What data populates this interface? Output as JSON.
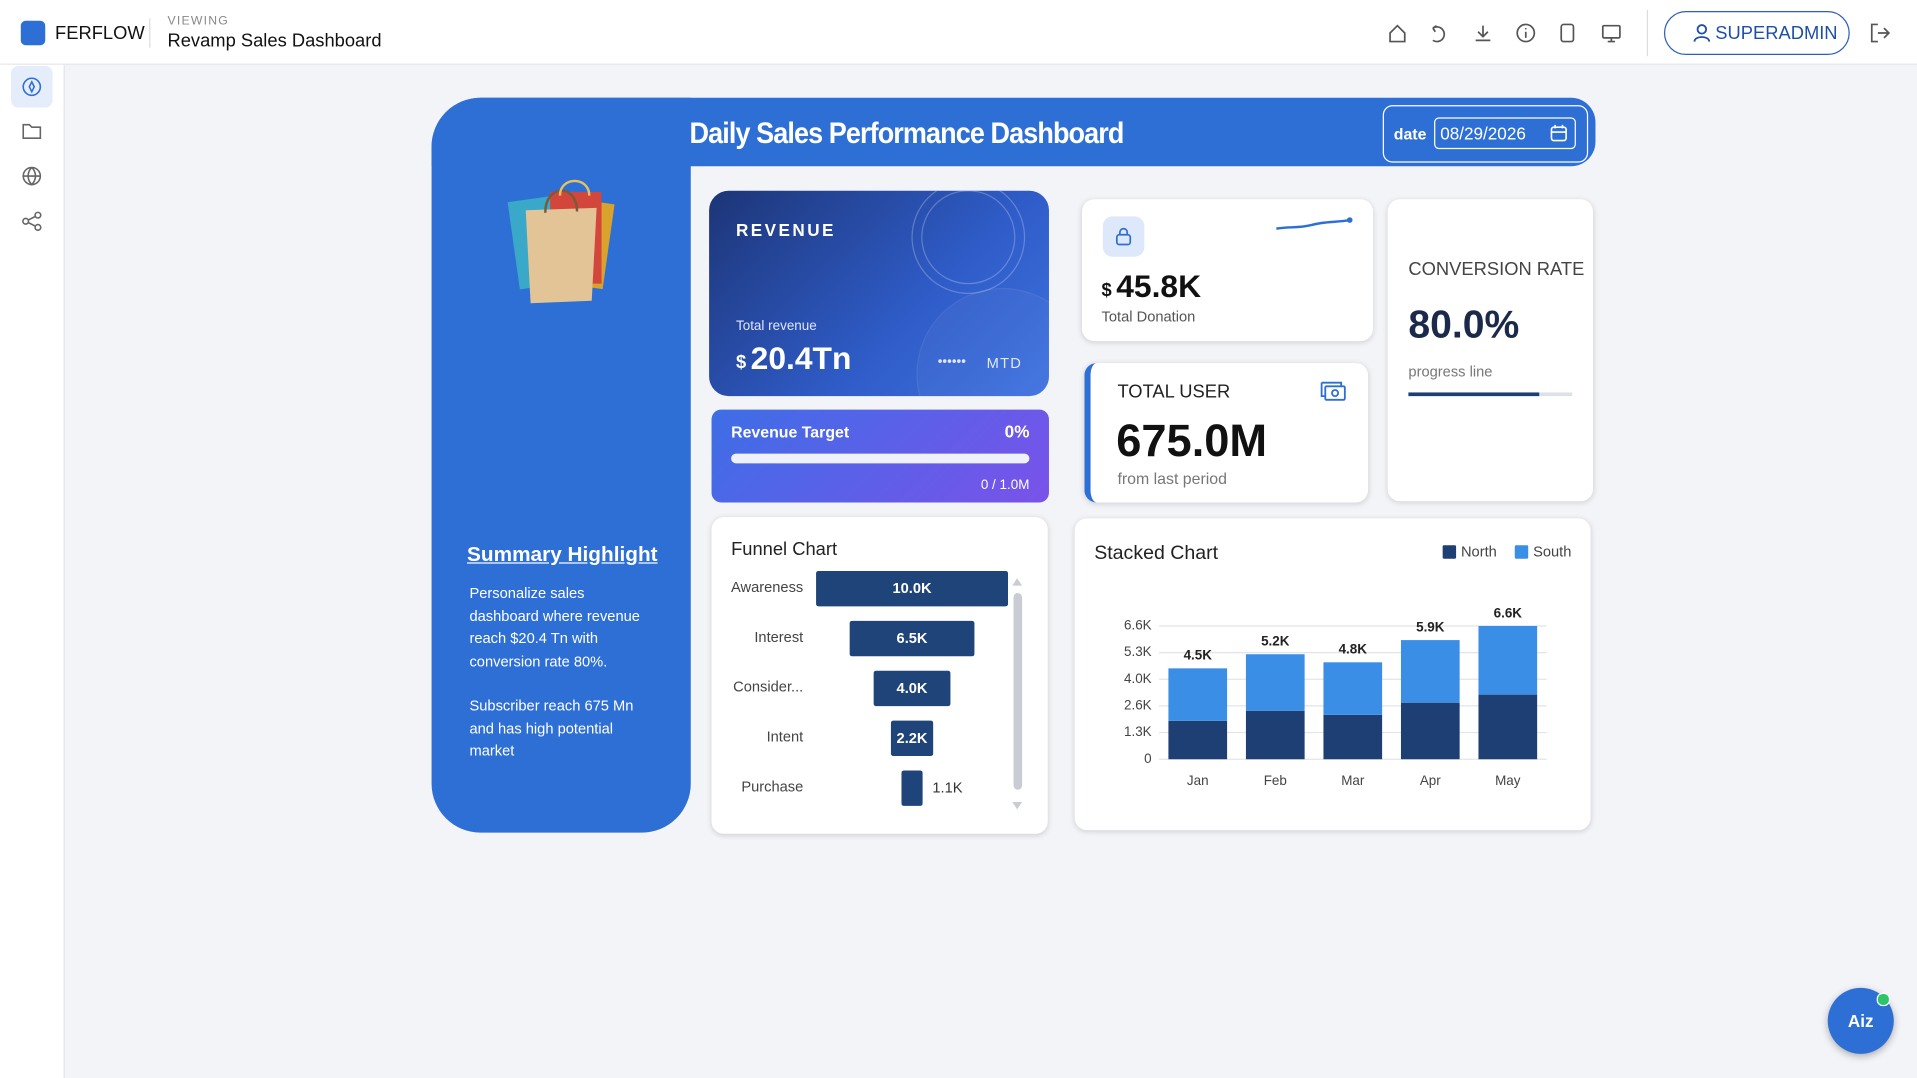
{
  "header": {
    "brand": "FERFLOW",
    "viewing_label": "VIEWING",
    "dashboard_name": "Revamp Sales Dashboard",
    "user": "SUPERADMIN"
  },
  "dashboard": {
    "title": "Daily Sales Performance Dashboard",
    "date_label": "date",
    "date_value": "08/29/2026",
    "summary": {
      "title": "Summary Highlight",
      "paragraphs": [
        "Personalize sales dashboard where revenue reach $20.4 Tn with conversion rate 80%.",
        "Subscriber reach 675 Mn and has high potential market"
      ]
    },
    "revenue": {
      "label": "REVENUE",
      "sub_label": "Total revenue",
      "currency": "$",
      "value": "20.4Tn",
      "masked": "••••••",
      "period": "MTD"
    },
    "revenue_target": {
      "label": "Revenue Target",
      "value": 0,
      "value_label": "0%",
      "progress": "0 / 1.0M"
    },
    "donation": {
      "currency": "$",
      "value": "45.8K",
      "label": "Total Donation"
    },
    "total_user": {
      "label": "TOTAL USER",
      "value": "675.0M",
      "note": "from last period"
    },
    "conversion": {
      "label": "CONVERSION RATE",
      "value": 80,
      "value_label": "80.0%",
      "note": "progress line"
    }
  },
  "chart_data": [
    {
      "type": "funnel",
      "title": "Funnel Chart",
      "categories": [
        "Awareness",
        "Interest",
        "Consider...",
        "Intent",
        "Purchase"
      ],
      "values": [
        10000,
        6500,
        4000,
        2200,
        1100
      ],
      "value_labels": [
        "10.0K",
        "6.5K",
        "4.0K",
        "2.2K",
        "1.1K"
      ],
      "color": "#1e4479"
    },
    {
      "type": "bar",
      "title": "Stacked Chart",
      "stacked": true,
      "legend": "top-right",
      "categories": [
        "Jan",
        "Feb",
        "Mar",
        "Apr",
        "May"
      ],
      "series": [
        {
          "name": "North",
          "color": "#1d3f74",
          "values": [
            1900,
            2400,
            2200,
            2800,
            3200
          ]
        },
        {
          "name": "South",
          "color": "#3a8ee6",
          "values": [
            2600,
            2800,
            2600,
            3100,
            3400
          ]
        }
      ],
      "total_labels": [
        "4.5K",
        "5.2K",
        "4.8K",
        "5.9K",
        "6.6K"
      ],
      "ylim": [
        0,
        6600
      ],
      "yticks": [
        0,
        {
          "value": 1320,
          "label": "1.3K"
        },
        {
          "value": 2640,
          "label": "2.6K"
        },
        {
          "value": 3960,
          "label": "4.0K"
        },
        {
          "value": 5280,
          "label": "5.3K"
        },
        {
          "value": 6600,
          "label": "6.6K"
        }
      ],
      "grid": true
    }
  ],
  "assistant": {
    "label": "Aiz"
  }
}
